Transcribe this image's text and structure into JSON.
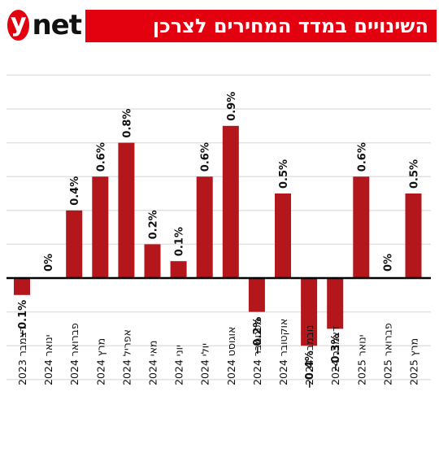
{
  "header": {
    "logo_mark": "y",
    "logo_word": "net",
    "title": "השינויים במדד המחירים לצרכן"
  },
  "colors": {
    "brand": "#e3000f",
    "bar": "#b3171c",
    "grid": "#e2e2e2",
    "zero": "#000000"
  },
  "chart_data": {
    "type": "bar",
    "title": "השינויים במדד המחירים לצרכן",
    "xlabel": "",
    "ylabel": "",
    "ylim": [
      -0.6,
      1.2
    ],
    "grid": true,
    "categories": [
      "דצמבר 2023",
      "ינואר 2024",
      "פברואר 2024",
      "מרץ 2024",
      "אפריל 2024",
      "מאי 2024",
      "יוני 2024",
      "יולי 2024",
      "אוגוסט 2024",
      "ספטמבר 2024",
      "אוקטובר 2024",
      "נובמבר 2024",
      "דצמבר 2024",
      "ינואר 2025",
      "פברואר 2025",
      "מרץ 2025"
    ],
    "values": [
      -0.1,
      0,
      0.4,
      0.6,
      0.8,
      0.2,
      0.1,
      0.6,
      0.9,
      -0.2,
      0.5,
      -0.4,
      -0.3,
      0.6,
      0,
      0.5
    ],
    "value_labels": [
      "−0.1%",
      "0%",
      "0.4%",
      "0.6%",
      "0.8%",
      "0.2%",
      "0.1%",
      "0.6%",
      "0.9%",
      "−0.2%",
      "0.5%",
      "−0.4%",
      "−0.3%",
      "0.6%",
      "0%",
      "0.5%"
    ]
  }
}
